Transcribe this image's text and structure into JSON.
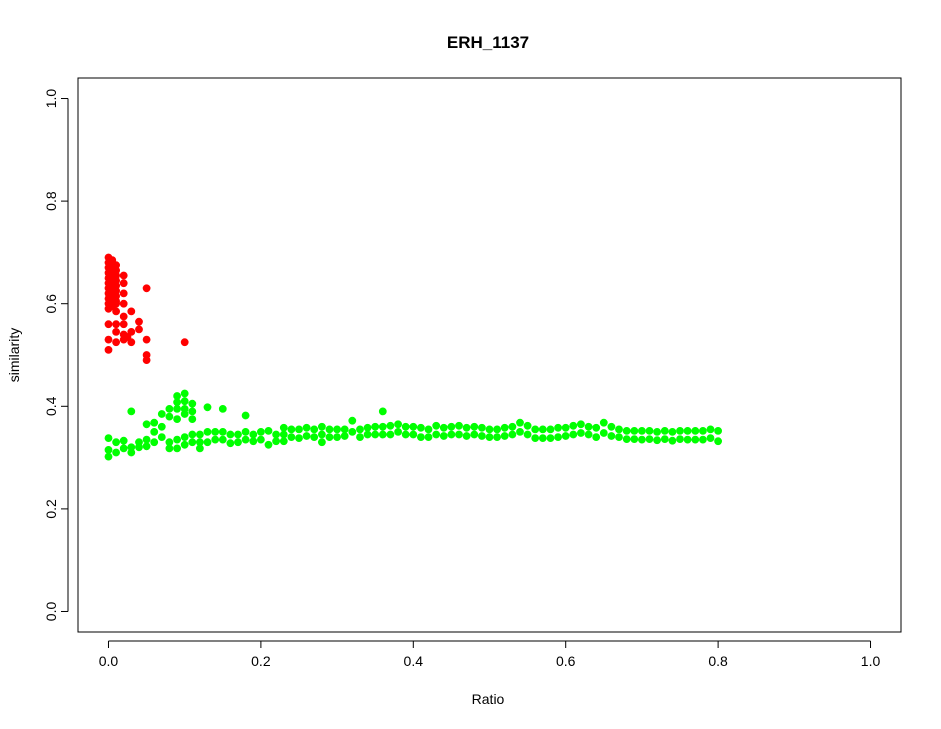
{
  "chart_data": {
    "type": "scatter",
    "title": "ERH_1137",
    "xlabel": "Ratio",
    "ylabel": "similarity",
    "xlim": [
      -0.04,
      1.04
    ],
    "ylim": [
      -0.04,
      1.04
    ],
    "x_ticks": [
      0.0,
      0.2,
      0.4,
      0.6,
      0.8,
      1.0
    ],
    "x_tick_labels": [
      "0.0",
      "0.2",
      "0.4",
      "0.6",
      "0.8",
      "1.0"
    ],
    "y_ticks": [
      0.0,
      0.2,
      0.4,
      0.6,
      0.8,
      1.0
    ],
    "y_tick_labels": [
      "0.0",
      "0.2",
      "0.4",
      "0.6",
      "0.8",
      "1.0"
    ],
    "grid": false,
    "legend": "none",
    "series": [
      {
        "color": "#ff0000",
        "points": [
          [
            0.0,
            0.69
          ],
          [
            0.0,
            0.68
          ],
          [
            0.0,
            0.67
          ],
          [
            0.0,
            0.66
          ],
          [
            0.0,
            0.65
          ],
          [
            0.0,
            0.64
          ],
          [
            0.0,
            0.63
          ],
          [
            0.0,
            0.62
          ],
          [
            0.0,
            0.61
          ],
          [
            0.0,
            0.6
          ],
          [
            0.0,
            0.59
          ],
          [
            0.0,
            0.56
          ],
          [
            0.0,
            0.53
          ],
          [
            0.0,
            0.51
          ],
          [
            0.005,
            0.685
          ],
          [
            0.005,
            0.675
          ],
          [
            0.005,
            0.665
          ],
          [
            0.005,
            0.655
          ],
          [
            0.005,
            0.645
          ],
          [
            0.005,
            0.635
          ],
          [
            0.005,
            0.625
          ],
          [
            0.005,
            0.615
          ],
          [
            0.005,
            0.605
          ],
          [
            0.005,
            0.595
          ],
          [
            0.01,
            0.675
          ],
          [
            0.01,
            0.665
          ],
          [
            0.01,
            0.655
          ],
          [
            0.01,
            0.645
          ],
          [
            0.01,
            0.635
          ],
          [
            0.01,
            0.625
          ],
          [
            0.01,
            0.615
          ],
          [
            0.01,
            0.605
          ],
          [
            0.01,
            0.6
          ],
          [
            0.01,
            0.585
          ],
          [
            0.01,
            0.56
          ],
          [
            0.01,
            0.545
          ],
          [
            0.01,
            0.525
          ],
          [
            0.02,
            0.655
          ],
          [
            0.02,
            0.64
          ],
          [
            0.02,
            0.62
          ],
          [
            0.02,
            0.6
          ],
          [
            0.02,
            0.575
          ],
          [
            0.02,
            0.56
          ],
          [
            0.02,
            0.54
          ],
          [
            0.02,
            0.53
          ],
          [
            0.025,
            0.535
          ],
          [
            0.03,
            0.585
          ],
          [
            0.03,
            0.545
          ],
          [
            0.03,
            0.525
          ],
          [
            0.04,
            0.565
          ],
          [
            0.04,
            0.55
          ],
          [
            0.05,
            0.63
          ],
          [
            0.05,
            0.53
          ],
          [
            0.05,
            0.5
          ],
          [
            0.05,
            0.49
          ],
          [
            0.1,
            0.525
          ]
        ]
      },
      {
        "color": "#00ff00",
        "points": [
          [
            0.0,
            0.338
          ],
          [
            0.0,
            0.315
          ],
          [
            0.0,
            0.302
          ],
          [
            0.01,
            0.33
          ],
          [
            0.01,
            0.31
          ],
          [
            0.02,
            0.333
          ],
          [
            0.02,
            0.318
          ],
          [
            0.03,
            0.39
          ],
          [
            0.03,
            0.32
          ],
          [
            0.03,
            0.31
          ],
          [
            0.04,
            0.33
          ],
          [
            0.04,
            0.32
          ],
          [
            0.05,
            0.365
          ],
          [
            0.05,
            0.335
          ],
          [
            0.05,
            0.322
          ],
          [
            0.06,
            0.368
          ],
          [
            0.06,
            0.35
          ],
          [
            0.06,
            0.33
          ],
          [
            0.07,
            0.385
          ],
          [
            0.07,
            0.36
          ],
          [
            0.07,
            0.34
          ],
          [
            0.08,
            0.395
          ],
          [
            0.08,
            0.38
          ],
          [
            0.08,
            0.33
          ],
          [
            0.08,
            0.318
          ],
          [
            0.09,
            0.42
          ],
          [
            0.09,
            0.408
          ],
          [
            0.09,
            0.395
          ],
          [
            0.09,
            0.375
          ],
          [
            0.09,
            0.335
          ],
          [
            0.09,
            0.318
          ],
          [
            0.1,
            0.425
          ],
          [
            0.1,
            0.41
          ],
          [
            0.1,
            0.395
          ],
          [
            0.1,
            0.385
          ],
          [
            0.1,
            0.34
          ],
          [
            0.1,
            0.325
          ],
          [
            0.11,
            0.405
          ],
          [
            0.11,
            0.39
          ],
          [
            0.11,
            0.375
          ],
          [
            0.11,
            0.345
          ],
          [
            0.11,
            0.33
          ],
          [
            0.12,
            0.345
          ],
          [
            0.12,
            0.33
          ],
          [
            0.12,
            0.318
          ],
          [
            0.13,
            0.398
          ],
          [
            0.13,
            0.35
          ],
          [
            0.13,
            0.33
          ],
          [
            0.14,
            0.35
          ],
          [
            0.14,
            0.335
          ],
          [
            0.15,
            0.395
          ],
          [
            0.15,
            0.35
          ],
          [
            0.15,
            0.335
          ],
          [
            0.16,
            0.345
          ],
          [
            0.16,
            0.328
          ],
          [
            0.17,
            0.345
          ],
          [
            0.17,
            0.33
          ],
          [
            0.18,
            0.382
          ],
          [
            0.18,
            0.35
          ],
          [
            0.18,
            0.335
          ],
          [
            0.19,
            0.345
          ],
          [
            0.19,
            0.332
          ],
          [
            0.2,
            0.35
          ],
          [
            0.2,
            0.335
          ],
          [
            0.21,
            0.352
          ],
          [
            0.21,
            0.325
          ],
          [
            0.22,
            0.345
          ],
          [
            0.22,
            0.332
          ],
          [
            0.23,
            0.358
          ],
          [
            0.23,
            0.345
          ],
          [
            0.23,
            0.332
          ],
          [
            0.24,
            0.355
          ],
          [
            0.24,
            0.34
          ],
          [
            0.25,
            0.355
          ],
          [
            0.25,
            0.338
          ],
          [
            0.26,
            0.358
          ],
          [
            0.26,
            0.342
          ],
          [
            0.27,
            0.355
          ],
          [
            0.27,
            0.34
          ],
          [
            0.28,
            0.36
          ],
          [
            0.28,
            0.345
          ],
          [
            0.28,
            0.33
          ],
          [
            0.29,
            0.355
          ],
          [
            0.29,
            0.34
          ],
          [
            0.3,
            0.355
          ],
          [
            0.3,
            0.34
          ],
          [
            0.31,
            0.355
          ],
          [
            0.31,
            0.342
          ],
          [
            0.32,
            0.372
          ],
          [
            0.32,
            0.35
          ],
          [
            0.33,
            0.355
          ],
          [
            0.33,
            0.34
          ],
          [
            0.34,
            0.358
          ],
          [
            0.34,
            0.345
          ],
          [
            0.35,
            0.36
          ],
          [
            0.35,
            0.345
          ],
          [
            0.36,
            0.39
          ],
          [
            0.36,
            0.36
          ],
          [
            0.36,
            0.345
          ],
          [
            0.37,
            0.362
          ],
          [
            0.37,
            0.345
          ],
          [
            0.38,
            0.365
          ],
          [
            0.38,
            0.35
          ],
          [
            0.39,
            0.36
          ],
          [
            0.39,
            0.345
          ],
          [
            0.4,
            0.36
          ],
          [
            0.4,
            0.345
          ],
          [
            0.41,
            0.358
          ],
          [
            0.41,
            0.34
          ],
          [
            0.42,
            0.355
          ],
          [
            0.42,
            0.34
          ],
          [
            0.43,
            0.362
          ],
          [
            0.43,
            0.345
          ],
          [
            0.44,
            0.358
          ],
          [
            0.44,
            0.342
          ],
          [
            0.45,
            0.36
          ],
          [
            0.45,
            0.345
          ],
          [
            0.46,
            0.362
          ],
          [
            0.46,
            0.345
          ],
          [
            0.47,
            0.358
          ],
          [
            0.47,
            0.342
          ],
          [
            0.48,
            0.36
          ],
          [
            0.48,
            0.345
          ],
          [
            0.49,
            0.358
          ],
          [
            0.49,
            0.342
          ],
          [
            0.5,
            0.355
          ],
          [
            0.5,
            0.34
          ],
          [
            0.51,
            0.355
          ],
          [
            0.51,
            0.34
          ],
          [
            0.52,
            0.358
          ],
          [
            0.52,
            0.342
          ],
          [
            0.53,
            0.36
          ],
          [
            0.53,
            0.345
          ],
          [
            0.54,
            0.368
          ],
          [
            0.54,
            0.35
          ],
          [
            0.55,
            0.362
          ],
          [
            0.55,
            0.345
          ],
          [
            0.56,
            0.355
          ],
          [
            0.56,
            0.338
          ],
          [
            0.57,
            0.355
          ],
          [
            0.57,
            0.338
          ],
          [
            0.58,
            0.355
          ],
          [
            0.58,
            0.338
          ],
          [
            0.59,
            0.358
          ],
          [
            0.59,
            0.34
          ],
          [
            0.6,
            0.358
          ],
          [
            0.6,
            0.342
          ],
          [
            0.61,
            0.362
          ],
          [
            0.61,
            0.345
          ],
          [
            0.62,
            0.365
          ],
          [
            0.62,
            0.348
          ],
          [
            0.63,
            0.36
          ],
          [
            0.63,
            0.345
          ],
          [
            0.64,
            0.358
          ],
          [
            0.64,
            0.34
          ],
          [
            0.65,
            0.368
          ],
          [
            0.65,
            0.348
          ],
          [
            0.66,
            0.36
          ],
          [
            0.66,
            0.342
          ],
          [
            0.67,
            0.355
          ],
          [
            0.67,
            0.34
          ],
          [
            0.68,
            0.352
          ],
          [
            0.68,
            0.336
          ],
          [
            0.69,
            0.352
          ],
          [
            0.69,
            0.336
          ],
          [
            0.7,
            0.352
          ],
          [
            0.7,
            0.335
          ],
          [
            0.71,
            0.352
          ],
          [
            0.71,
            0.336
          ],
          [
            0.72,
            0.35
          ],
          [
            0.72,
            0.334
          ],
          [
            0.73,
            0.352
          ],
          [
            0.73,
            0.336
          ],
          [
            0.74,
            0.35
          ],
          [
            0.74,
            0.333
          ],
          [
            0.75,
            0.352
          ],
          [
            0.75,
            0.336
          ],
          [
            0.76,
            0.352
          ],
          [
            0.76,
            0.335
          ],
          [
            0.77,
            0.352
          ],
          [
            0.77,
            0.335
          ],
          [
            0.78,
            0.352
          ],
          [
            0.78,
            0.335
          ],
          [
            0.79,
            0.355
          ],
          [
            0.79,
            0.338
          ],
          [
            0.8,
            0.352
          ],
          [
            0.8,
            0.332
          ]
        ]
      }
    ]
  }
}
